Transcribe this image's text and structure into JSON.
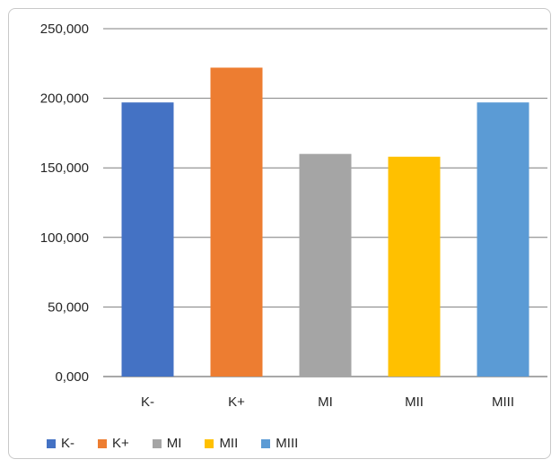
{
  "chart_data": {
    "type": "bar",
    "categories": [
      "K-",
      "K+",
      "MI",
      "MII",
      "MIII"
    ],
    "values": [
      197000,
      222000,
      160000,
      158000,
      197000
    ],
    "colors": [
      "#4472c4",
      "#ed7d31",
      "#a5a5a5",
      "#ffc000",
      "#5b9bd5"
    ],
    "ylim": [
      0,
      250000
    ],
    "yticks": [
      "0,000",
      "50,000",
      "100,000",
      "150,000",
      "200,000",
      "250,000"
    ],
    "grid": true,
    "legend": {
      "position": "bottom-left",
      "entries": [
        "K-",
        "K+",
        "MI",
        "MII",
        "MIII"
      ]
    },
    "title": "",
    "xlabel": "",
    "ylabel": ""
  }
}
